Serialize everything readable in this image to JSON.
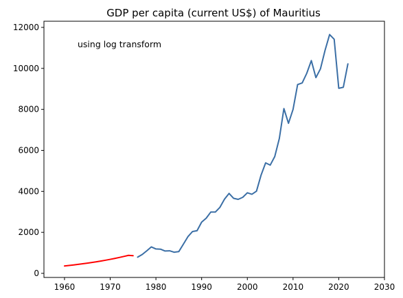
{
  "chart_data": {
    "type": "line",
    "title": "GDP per capita (current US$) of Mauritius",
    "annotation": "using log transform",
    "xlabel": "",
    "ylabel": "",
    "xlim": [
      1955.5,
      2030
    ],
    "ylim": [
      -200,
      12300
    ],
    "xticks": [
      1960,
      1970,
      1980,
      1990,
      2000,
      2010,
      2020,
      2030
    ],
    "yticks": [
      0,
      2000,
      4000,
      6000,
      8000,
      10000,
      12000
    ],
    "grid": false,
    "series": [
      {
        "color": "#ff0000",
        "x": [
          1960,
          1961,
          1962,
          1963,
          1964,
          1965,
          1966,
          1967,
          1968,
          1969,
          1970,
          1971,
          1972,
          1973,
          1974,
          1975
        ],
        "y": [
          360,
          385,
          410,
          438,
          467,
          498,
          531,
          566,
          603,
          642,
          684,
          728,
          775,
          825,
          878,
          860
        ]
      },
      {
        "color": "#3a6ea5",
        "x": [
          1976,
          1977,
          1978,
          1979,
          1980,
          1981,
          1982,
          1983,
          1984,
          1985,
          1986,
          1987,
          1988,
          1989,
          1990,
          1991,
          1992,
          1993,
          1994,
          1995,
          1996,
          1997,
          1998,
          1999,
          2000,
          2001,
          2002,
          2003,
          2004,
          2005,
          2006,
          2007,
          2008,
          2009,
          2010,
          2011,
          2012,
          2013,
          2014,
          2015,
          2016,
          2017,
          2018,
          2019,
          2020,
          2021,
          2022
        ],
        "y": [
          790,
          920,
          1100,
          1290,
          1190,
          1180,
          1090,
          1100,
          1030,
          1060,
          1420,
          1790,
          2040,
          2080,
          2500,
          2690,
          2990,
          2990,
          3220,
          3620,
          3900,
          3660,
          3610,
          3710,
          3930,
          3860,
          4010,
          4790,
          5390,
          5280,
          5700,
          6580,
          8040,
          7320,
          8000,
          9210,
          9290,
          9760,
          10380,
          9550,
          9980,
          10880,
          11650,
          11420,
          9030,
          9080,
          10220
        ]
      }
    ]
  }
}
